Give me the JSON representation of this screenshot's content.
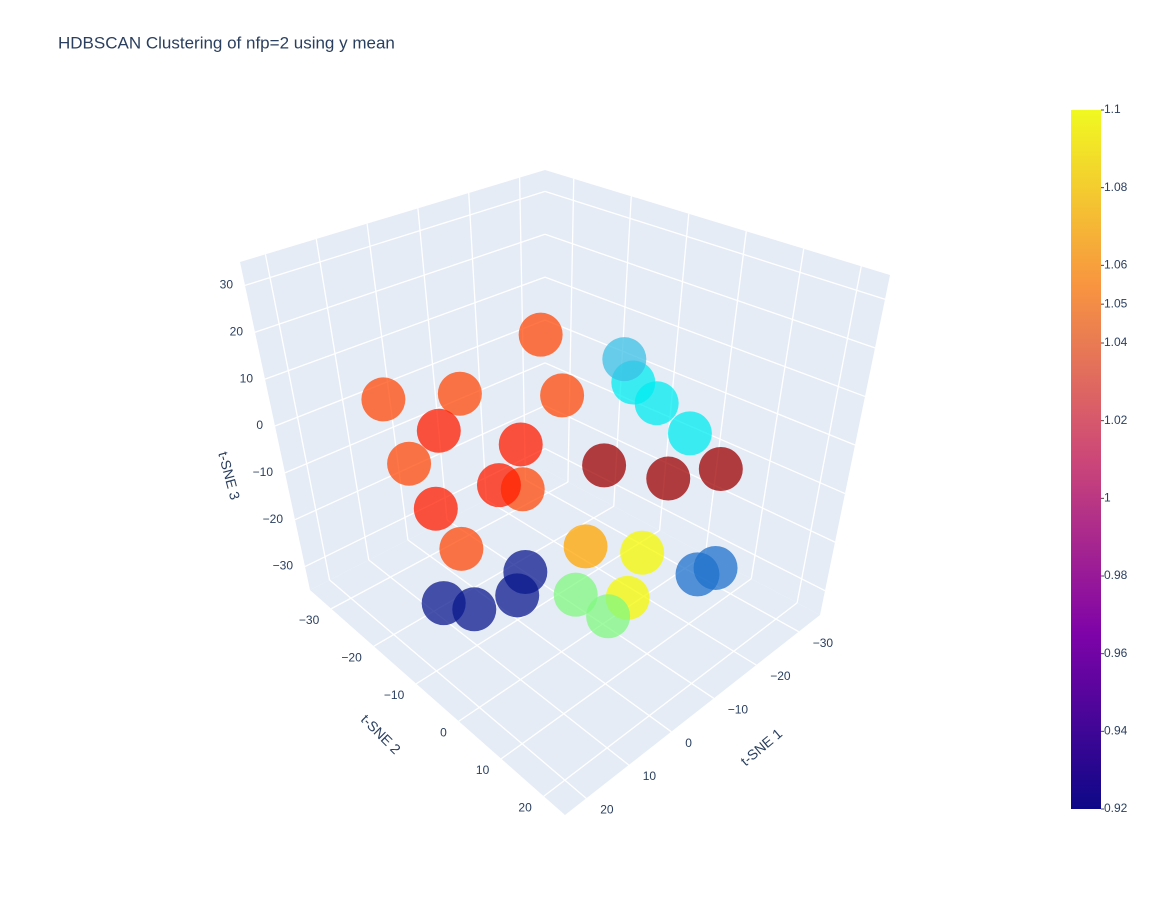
{
  "chart_data": {
    "type": "scatter3d",
    "title": "HDBSCAN Clustering of nfp=2 using y mean",
    "xlabel": "t-SNE 1",
    "ylabel": "t-SNE 2",
    "zlabel": "t-SNE 3",
    "xlim": [
      -35,
      25
    ],
    "ylim": [
      -35,
      25
    ],
    "zlim": [
      -35,
      35
    ],
    "xticks": [
      {
        "value": -30,
        "label": "−30"
      },
      {
        "value": -20,
        "label": "−20"
      },
      {
        "value": -10,
        "label": "−10"
      },
      0,
      10,
      20
    ],
    "yticks": [
      {
        "value": -30,
        "label": "−30"
      },
      {
        "value": -20,
        "label": "−20"
      },
      {
        "value": -10,
        "label": "−10"
      },
      0,
      10,
      20
    ],
    "zticks": [
      {
        "value": -30,
        "label": "−30"
      },
      {
        "value": -20,
        "label": "−20"
      },
      {
        "value": -10,
        "label": "−10"
      },
      0,
      10,
      20,
      30
    ],
    "grid": true,
    "series": [
      {
        "color": "#ff4a0a",
        "x": [
          -14,
          3,
          10,
          11,
          -13,
          1,
          9
        ],
        "y": [
          -17,
          -17,
          -22,
          -11,
          -12,
          -7,
          -27
        ],
        "z": [
          15,
          10,
          -5,
          -15,
          5,
          -5,
          5
        ]
      },
      {
        "color": "#ff1c00",
        "x": [
          4,
          3,
          11,
          -3
        ],
        "y": [
          -21,
          -10,
          -16,
          -11
        ],
        "z": [
          0,
          -5,
          -10,
          0
        ]
      },
      {
        "color": "#00ecf0",
        "x": [
          -21,
          -23,
          -18
        ],
        "y": [
          -1,
          4,
          -3
        ],
        "z": [
          5,
          0,
          10
        ]
      },
      {
        "color": "#3cc0e6",
        "x": [
          -17
        ],
        "y": [
          -4
        ],
        "z": [
          15
        ]
      },
      {
        "color": "#9e0000",
        "x": [
          -8,
          -12,
          -14
        ],
        "y": [
          1,
          10,
          18
        ],
        "z": [
          0,
          0,
          5
        ]
      },
      {
        "color": "#f4f800",
        "x": [
          -5,
          0
        ],
        "y": [
          12,
          14
        ],
        "z": [
          -10,
          -15
        ]
      },
      {
        "color": "#ffa500",
        "x": [
          0
        ],
        "y": [
          5
        ],
        "z": [
          -10
        ]
      },
      {
        "color": "#80f880",
        "x": [
          1,
          1
        ],
        "y": [
          11,
          4
        ],
        "z": [
          -20,
          -20
        ]
      },
      {
        "color": "#0b1a8e",
        "x": [
          12,
          4,
          15,
          3
        ],
        "y": [
          -8,
          -6,
          -12,
          -5
        ],
        "z": [
          -25,
          -25,
          -25,
          -20
        ]
      },
      {
        "color": "#1f72cc",
        "x": [
          -16,
          -19
        ],
        "y": [
          14,
          15
        ],
        "z": [
          -20,
          -20
        ]
      }
    ],
    "colorbar": {
      "cmin": 0.92,
      "cmax": 1.1,
      "colors": [
        "#0d0887",
        "#7e03a8",
        "#cc4778",
        "#f89540",
        "#f0f921"
      ],
      "ticks": [
        0.92,
        0.94,
        0.96,
        0.98,
        1,
        1.02,
        1.04,
        1.05,
        1.06,
        1.08,
        1.1
      ]
    }
  }
}
